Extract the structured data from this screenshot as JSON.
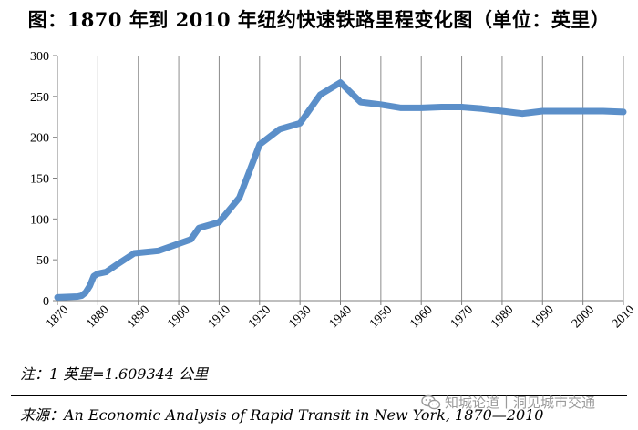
{
  "chart_data": {
    "type": "line",
    "title": "图：1870 年到 2010 年纽约快速铁路里程变化图（单位：英里）",
    "xlabel": "",
    "ylabel": "",
    "xlim": [
      1870,
      2010
    ],
    "ylim": [
      0,
      300
    ],
    "x_ticks": [
      1870,
      1880,
      1890,
      1900,
      1910,
      1920,
      1930,
      1940,
      1950,
      1960,
      1970,
      1980,
      1990,
      2000,
      2010
    ],
    "y_ticks": [
      0,
      50,
      100,
      150,
      200,
      250,
      300
    ],
    "grid": "vertical",
    "line_color": "#5b8fc9",
    "series": [
      {
        "name": "纽约快速铁路里程",
        "x": [
          1870,
          1875,
          1876,
          1877,
          1878,
          1879,
          1880,
          1882,
          1885,
          1889,
          1895,
          1903,
          1905,
          1910,
          1915,
          1920,
          1925,
          1930,
          1935,
          1940,
          1945,
          1950,
          1955,
          1960,
          1965,
          1970,
          1975,
          1980,
          1985,
          1990,
          1995,
          2000,
          2005,
          2010
        ],
        "values": [
          4,
          5,
          6,
          10,
          18,
          30,
          33,
          35,
          45,
          58,
          61,
          75,
          89,
          96,
          126,
          191,
          210,
          217,
          252,
          267,
          243,
          240,
          236,
          236,
          237,
          237,
          235,
          232,
          229,
          232,
          232,
          232,
          232,
          231
        ]
      }
    ]
  },
  "note": "注：1 英里=1.609344 公里",
  "source": "来源：An Economic Analysis of Rapid Transit in New York, 1870—2010",
  "watermark": "知城论道丨洞见城市交通",
  "watermark_icon": "wechat-icon"
}
